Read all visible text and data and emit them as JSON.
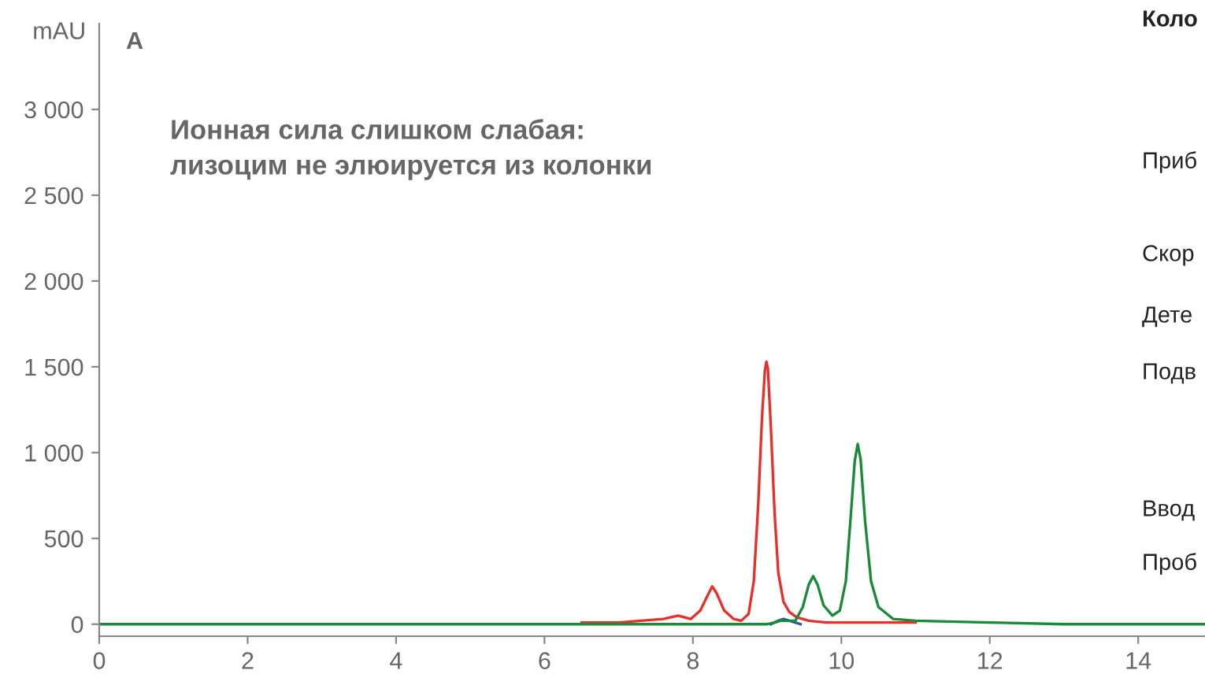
{
  "chart_data": {
    "type": "line",
    "ylabel": "mAU",
    "xlim": [
      0,
      14.9
    ],
    "xticks": [
      0,
      2,
      4,
      6,
      8,
      10,
      12,
      14
    ],
    "ylim": [
      -70,
      3500
    ],
    "yticks": [
      0,
      500,
      {
        "value": 1000,
        "label": "1 000"
      },
      {
        "value": 1500,
        "label": "1 500"
      },
      {
        "value": 2000,
        "label": "2 000"
      },
      {
        "value": 2500,
        "label": "2 500"
      },
      {
        "value": 3000,
        "label": "3 000"
      }
    ],
    "grid": false,
    "legend": false,
    "marker": "none",
    "line_style": "solid",
    "series": [
      {
        "color": "#2a55a8",
        "x": [
          9.05,
          9.15,
          9.22,
          9.3,
          9.45
        ],
        "values": [
          0,
          20,
          30,
          20,
          0
        ]
      },
      {
        "color": "#e8302a",
        "x": [
          6.5,
          7,
          7.3,
          7.6,
          7.8,
          7.97,
          8.1,
          8.2,
          8.26,
          8.32,
          8.42,
          8.55,
          8.65,
          8.75,
          8.82,
          8.88,
          8.93,
          8.97,
          8.99,
          9.01,
          9.05,
          9.1,
          9.15,
          9.22,
          9.3,
          9.4,
          9.56,
          9.8,
          10.2,
          11
        ],
        "values": [
          10,
          10,
          20,
          30,
          50,
          30,
          80,
          170,
          220,
          180,
          80,
          30,
          20,
          60,
          250,
          700,
          1200,
          1480,
          1530,
          1490,
          1150,
          650,
          300,
          130,
          70,
          40,
          20,
          10,
          10,
          10
        ]
      },
      {
        "color": "#1a8a3a",
        "x": [
          0,
          4,
          8.5,
          9.0,
          9.1,
          9.18,
          9.27,
          9.38,
          9.48,
          9.56,
          9.62,
          9.68,
          9.76,
          9.88,
          9.98,
          10.06,
          10.13,
          10.18,
          10.22,
          10.26,
          10.32,
          10.4,
          10.5,
          10.7,
          11,
          12,
          13,
          14.9
        ],
        "values": [
          0,
          0,
          0,
          0,
          10,
          20,
          20,
          20,
          100,
          230,
          280,
          230,
          110,
          50,
          80,
          250,
          650,
          950,
          1050,
          960,
          600,
          250,
          100,
          30,
          20,
          10,
          0,
          0
        ]
      }
    ],
    "annotations": [
      "A",
      "Ионная сила слишком слабая:\nлизоцим не элюируется из колонки",
      "Коло",
      "Приб",
      "Скор",
      "Дете",
      "Подв",
      "Ввод",
      "Проб"
    ]
  }
}
